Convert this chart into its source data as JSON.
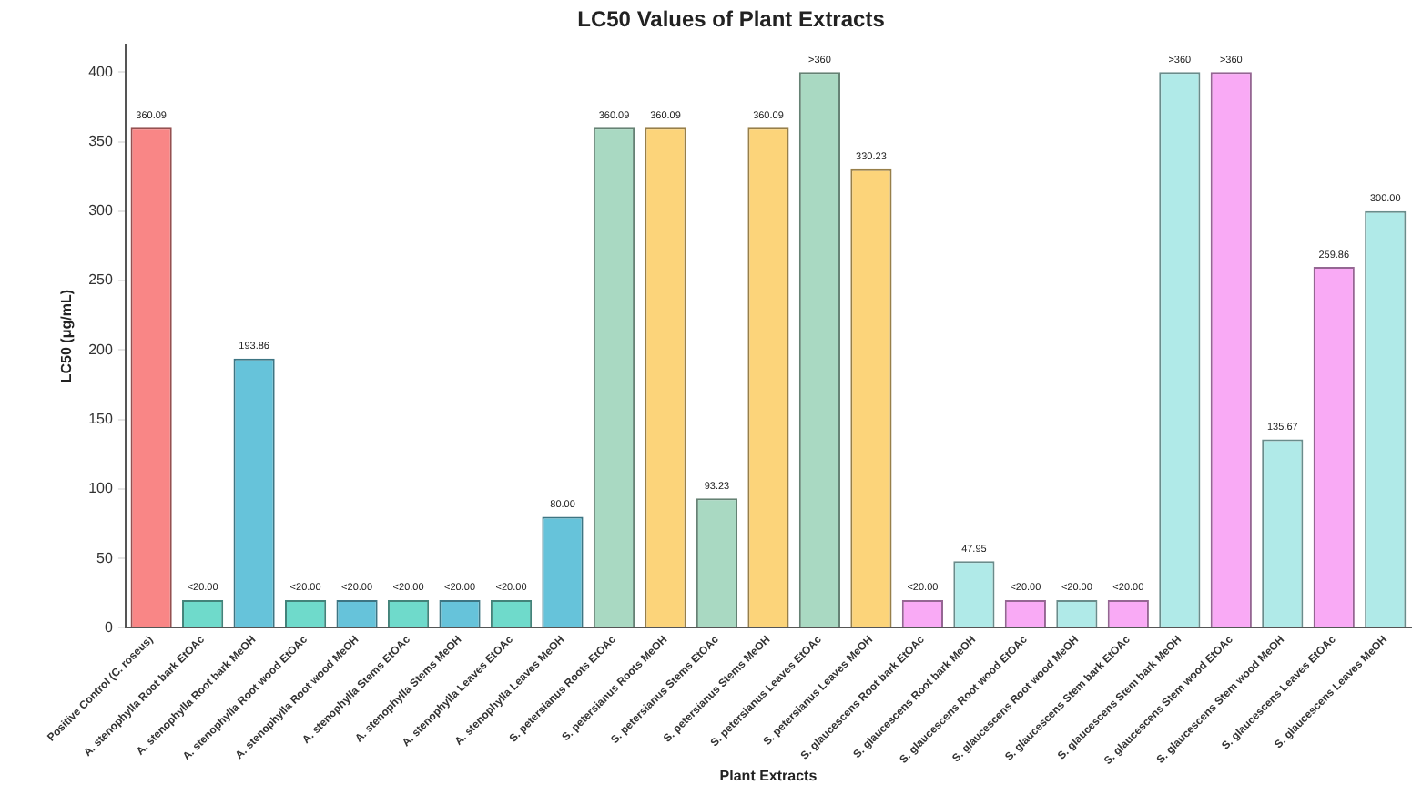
{
  "chart_data": {
    "type": "bar",
    "title": "LC50 Values of Plant Extracts",
    "xlabel": "Plant Extracts",
    "ylabel": "LC50 (μg/mL)",
    "categories": [
      "Positive Control (C. roseus)",
      "A. stenophylla Root bark EtOAc",
      "A. stenophylla Root bark MeOH",
      "A. stenophylla Root wood EtOAc",
      "A. stenophylla Root wood MeOH",
      "A. stenophylla Stems EtOAc",
      "A. stenophylla Stems MeOH",
      "A. stenophylla Leaves EtOAc",
      "A. stenophylla Leaves MeOH",
      "S. petersianus Roots EtOAc",
      "S. petersianus Roots MeOH",
      "S. petersianus Stems EtOAc",
      "S. petersianus Stems MeOH",
      "S. petersianus Leaves EtOAc",
      "S. petersianus Leaves MeOH",
      "S. glaucescens Root bark EtOAc",
      "S. glaucescens Root bark MeOH",
      "S. glaucescens Root wood EtOAc",
      "S. glaucescens Root wood MeOH",
      "S. glaucescens Stem bark EtOAc",
      "S. glaucescens Stem bark MeOH",
      "S. glaucescens Stem wood EtOAc",
      "S. glaucescens Stem wood MeOH",
      "S. glaucescens Leaves EtOAc",
      "S. glaucescens Leaves MeOH"
    ],
    "values": [
      360.09,
      20,
      193.86,
      20,
      20,
      20,
      20,
      20,
      80,
      360.09,
      360.09,
      93.23,
      360.09,
      400,
      330.23,
      20,
      47.95,
      20,
      20,
      20,
      400,
      400,
      135.67,
      259.86,
      300
    ],
    "value_labels": [
      "360.09",
      "<20.00",
      "193.86",
      "<20.00",
      "<20.00",
      "<20.00",
      "<20.00",
      "<20.00",
      "80.00",
      "360.09",
      "360.09",
      "93.23",
      "360.09",
      ">360",
      "330.23",
      "<20.00",
      "47.95",
      "<20.00",
      "<20.00",
      "<20.00",
      ">360",
      ">360",
      "135.67",
      "259.86",
      "300.00"
    ],
    "colors": [
      "#f98686",
      "#6fdacb",
      "#66c3da",
      "#6fdacb",
      "#66c3da",
      "#6fdacb",
      "#66c3da",
      "#6fdacb",
      "#66c3da",
      "#a9d9c2",
      "#fcd47a",
      "#a9d9c2",
      "#fcd47a",
      "#a9d9c2",
      "#fcd47a",
      "#f9aaf5",
      "#b0eae8",
      "#f9aaf5",
      "#b0eae8",
      "#f9aaf5",
      "#b0eae8",
      "#f9aaf5",
      "#b0eae8",
      "#f9aaf5",
      "#b0eae8"
    ],
    "ylim": [
      0,
      420
    ],
    "yticks": [
      0,
      50,
      100,
      150,
      200,
      250,
      300,
      350,
      400
    ],
    "grid": false,
    "legend": false
  }
}
